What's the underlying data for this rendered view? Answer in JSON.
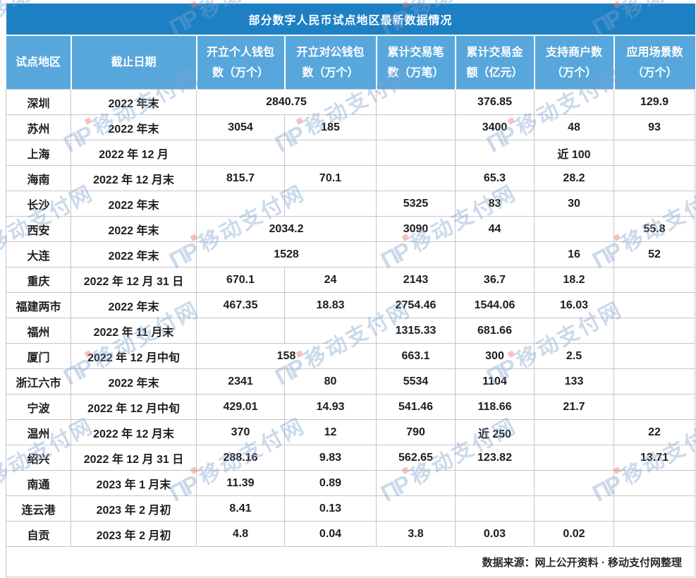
{
  "chart_data": {
    "type": "table",
    "title": "部分数字人民币试点地区最新数据情况",
    "columns": [
      "试点地区",
      "截止日期",
      "开立个人钱包\n数（万个）",
      "开立对公钱包\n数（万个）",
      "累计交易笔\n数（万笔）",
      "累计交易金\n额（亿元）",
      "支持商户数\n（万个）",
      "应用场景数\n（万个）"
    ],
    "rows": [
      {
        "region": "深圳",
        "date": "2022 年末",
        "merged": "2840.75",
        "tx_count": "",
        "tx_amount": "376.85",
        "merchants": "",
        "scenarios": "129.9"
      },
      {
        "region": "苏州",
        "date": "2022 年末",
        "personal": "3054",
        "corporate": "185",
        "tx_count": "",
        "tx_amount": "3400",
        "merchants": "48",
        "scenarios": "93"
      },
      {
        "region": "上海",
        "date": "2022 年 12 月",
        "personal": "",
        "corporate": "",
        "tx_count": "",
        "tx_amount": "",
        "merchants": "近 100",
        "scenarios": ""
      },
      {
        "region": "海南",
        "date": "2022 年 12 月末",
        "personal": "815.7",
        "corporate": "70.1",
        "tx_count": "",
        "tx_amount": "65.3",
        "merchants": "28.2",
        "scenarios": ""
      },
      {
        "region": "长沙",
        "date": "2022 年末",
        "personal": "",
        "corporate": "",
        "tx_count": "5325",
        "tx_amount": "83",
        "merchants": "30",
        "scenarios": ""
      },
      {
        "region": "西安",
        "date": "2022 年末",
        "merged": "2034.2",
        "tx_count": "3090",
        "tx_amount": "44",
        "merchants": "",
        "scenarios": "55.8"
      },
      {
        "region": "大连",
        "date": "2022 年末",
        "merged": "1528",
        "tx_count": "",
        "tx_amount": "",
        "merchants": "16",
        "scenarios": "52"
      },
      {
        "region": "重庆",
        "date": "2022 年 12 月 31 日",
        "personal": "670.1",
        "corporate": "24",
        "tx_count": "2143",
        "tx_amount": "36.7",
        "merchants": "18.2",
        "scenarios": ""
      },
      {
        "region": "福建两市",
        "date": "2022 年末",
        "personal": "467.35",
        "corporate": "18.83",
        "tx_count": "2754.46",
        "tx_amount": "1544.06",
        "merchants": "16.03",
        "scenarios": ""
      },
      {
        "region": "福州",
        "date": "2022 年 11 月末",
        "personal": "",
        "corporate": "",
        "tx_count": "1315.33",
        "tx_amount": "681.66",
        "merchants": "",
        "scenarios": ""
      },
      {
        "region": "厦门",
        "date": "2022 年 12 月中旬",
        "merged": "158",
        "tx_count": "663.1",
        "tx_amount": "300",
        "merchants": "2.5",
        "scenarios": ""
      },
      {
        "region": "浙江六市",
        "date": "2022 年末",
        "personal": "2341",
        "corporate": "80",
        "tx_count": "5534",
        "tx_amount": "1104",
        "merchants": "133",
        "scenarios": ""
      },
      {
        "region": "宁波",
        "date": "2022 年 12 月中旬",
        "personal": "429.01",
        "corporate": "14.93",
        "tx_count": "541.46",
        "tx_amount": "118.66",
        "merchants": "21.7",
        "scenarios": ""
      },
      {
        "region": "温州",
        "date": "2022 年 12 月末",
        "personal": "370",
        "corporate": "12",
        "tx_count": "790",
        "tx_amount": "近 250",
        "merchants": "",
        "scenarios": "22"
      },
      {
        "region": "绍兴",
        "date": "2022 年 12 月 31 日",
        "personal": "288.16",
        "corporate": "9.83",
        "tx_count": "562.65",
        "tx_amount": "123.82",
        "merchants": "",
        "scenarios": "13.71"
      },
      {
        "region": "南通",
        "date": "2023 年 1 月末",
        "personal": "11.39",
        "corporate": "0.89",
        "tx_count": "",
        "tx_amount": "",
        "merchants": "",
        "scenarios": ""
      },
      {
        "region": "连云港",
        "date": "2023 年 2 月初",
        "personal": "8.41",
        "corporate": "0.13",
        "tx_count": "",
        "tx_amount": "",
        "merchants": "",
        "scenarios": ""
      },
      {
        "region": "自贡",
        "date": "2023 年 2 月初",
        "personal": "4.8",
        "corporate": "0.04",
        "tx_count": "3.8",
        "tx_amount": "0.03",
        "merchants": "0.02",
        "scenarios": ""
      }
    ],
    "source_note": "数据来源：网上公开资料 · 移动支付网整理"
  },
  "watermark": {
    "logo_glyph": "ΠP",
    "text": "移动支付网"
  },
  "colors": {
    "title_bar": "#1E80C4",
    "header_row": "#58A7DC",
    "cell_border": "#C6C6C6",
    "watermark_blue": "rgba(125,162,206,0.40)",
    "watermark_red": "rgba(228,120,104,0.45)"
  }
}
